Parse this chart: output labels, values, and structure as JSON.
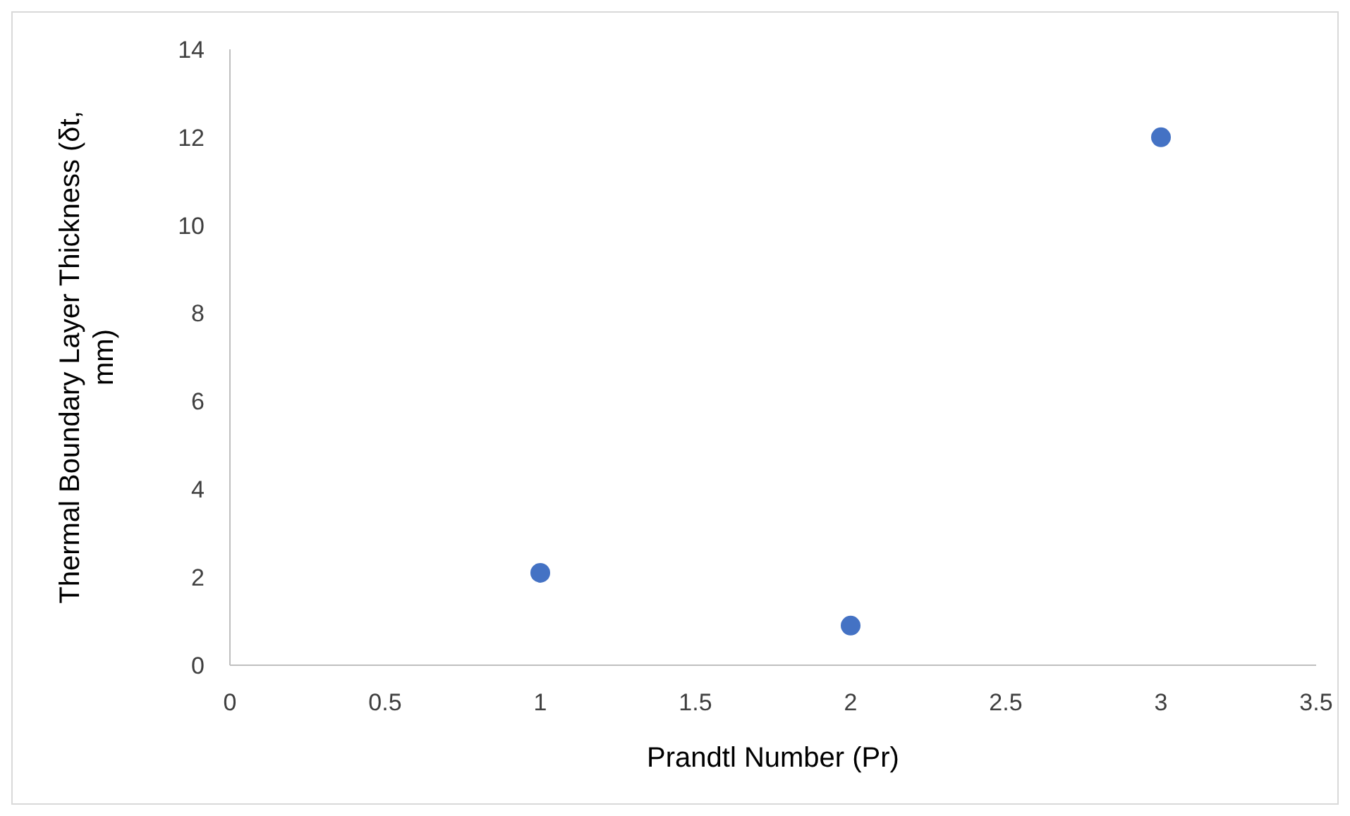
{
  "chart_data": {
    "type": "scatter",
    "xlabel": "Prandtl Number (Pr)",
    "ylabel": "Thermal Boundary Layer Thickness (δt, mm)",
    "x": [
      1,
      2,
      3
    ],
    "series": [
      {
        "color": "#4472c4",
        "values": [
          2.1,
          0.9,
          12
        ]
      }
    ],
    "xlim": [
      0,
      3.5
    ],
    "xticks": [
      0,
      0.5,
      1,
      1.5,
      2,
      2.5,
      3,
      3.5
    ],
    "ylim": [
      0,
      14
    ],
    "yticks": [
      0,
      2,
      4,
      6,
      8,
      10,
      12,
      14
    ],
    "grid": false,
    "marker": "circle"
  }
}
